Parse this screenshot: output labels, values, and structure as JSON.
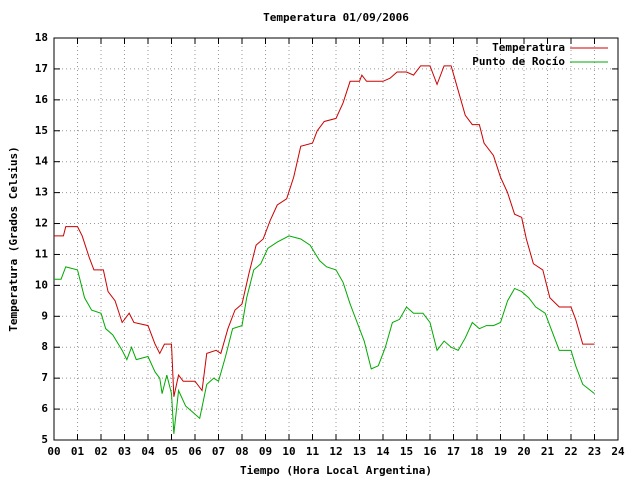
{
  "chart_data": {
    "type": "line",
    "title": "Temperatura 01/09/2006",
    "xlabel": "Tiempo (Hora Local Argentina)",
    "ylabel": "Temperatura (Grados Celsius)",
    "xlim": [
      0,
      24
    ],
    "ylim": [
      5,
      18
    ],
    "xticks": [
      {
        "value": 0,
        "label": "00"
      },
      {
        "value": 1,
        "label": "01"
      },
      {
        "value": 2,
        "label": "02"
      },
      {
        "value": 3,
        "label": "03"
      },
      {
        "value": 4,
        "label": "04"
      },
      {
        "value": 5,
        "label": "05"
      },
      {
        "value": 6,
        "label": "06"
      },
      {
        "value": 7,
        "label": "07"
      },
      {
        "value": 8,
        "label": "08"
      },
      {
        "value": 9,
        "label": "09"
      },
      10,
      11,
      12,
      13,
      14,
      15,
      16,
      17,
      18,
      19,
      20,
      21,
      22,
      23,
      24
    ],
    "yticks": [
      5,
      6,
      7,
      8,
      9,
      10,
      11,
      12,
      13,
      14,
      15,
      16,
      17,
      18
    ],
    "grid": true,
    "legend": "top-right",
    "series": [
      {
        "name": "Temperatura",
        "color": "#cc0000",
        "x": [
          0,
          0.4,
          0.5,
          1.0,
          1.2,
          1.5,
          1.7,
          2.1,
          2.3,
          2.6,
          2.9,
          3.2,
          3.4,
          4.0,
          4.3,
          4.5,
          4.7,
          5.0,
          5.1,
          5.3,
          5.5,
          6.0,
          6.3,
          6.5,
          6.9,
          7.1,
          7.4,
          7.7,
          8.0,
          8.3,
          8.6,
          8.9,
          9.2,
          9.5,
          9.9,
          10.2,
          10.5,
          11.0,
          11.2,
          11.5,
          12.0,
          12.3,
          12.6,
          13.0,
          13.1,
          13.3,
          14.0,
          14.3,
          14.6,
          15.0,
          15.3,
          15.6,
          16.0,
          16.3,
          16.6,
          16.9,
          17.2,
          17.5,
          17.8,
          18.1,
          18.3,
          18.7,
          19.0,
          19.3,
          19.6,
          19.9,
          20.1,
          20.4,
          20.8,
          21.1,
          21.5,
          22.0,
          22.2,
          22.5,
          23.0
        ],
        "values": [
          11.6,
          11.6,
          11.9,
          11.9,
          11.6,
          10.9,
          10.5,
          10.5,
          9.8,
          9.5,
          8.8,
          9.1,
          8.8,
          8.7,
          8.1,
          7.8,
          8.1,
          8.1,
          6.4,
          7.1,
          6.9,
          6.9,
          6.6,
          7.8,
          7.9,
          7.8,
          8.6,
          9.2,
          9.4,
          10.4,
          11.3,
          11.5,
          12.1,
          12.6,
          12.8,
          13.5,
          14.5,
          14.6,
          15.0,
          15.3,
          15.4,
          15.9,
          16.6,
          16.6,
          16.8,
          16.6,
          16.6,
          16.7,
          16.9,
          16.9,
          16.8,
          17.1,
          17.1,
          16.5,
          17.1,
          17.1,
          16.3,
          15.5,
          15.2,
          15.2,
          14.6,
          14.2,
          13.5,
          13.0,
          12.3,
          12.2,
          11.5,
          10.7,
          10.5,
          9.6,
          9.3,
          9.3,
          8.9,
          8.1,
          8.1
        ]
      },
      {
        "name": "Punto de Rocío",
        "color": "#00aa00",
        "x": [
          0,
          0.3,
          0.5,
          1.0,
          1.3,
          1.6,
          2.0,
          2.2,
          2.5,
          2.9,
          3.1,
          3.3,
          3.5,
          4.0,
          4.3,
          4.5,
          4.6,
          4.8,
          5.0,
          5.1,
          5.3,
          5.6,
          5.9,
          6.2,
          6.5,
          6.8,
          7.0,
          7.3,
          7.6,
          8.0,
          8.2,
          8.5,
          8.8,
          9.1,
          9.5,
          10.0,
          10.5,
          10.9,
          11.3,
          11.6,
          12.0,
          12.3,
          12.6,
          12.9,
          13.2,
          13.5,
          13.8,
          14.1,
          14.4,
          14.7,
          15.0,
          15.3,
          15.7,
          16.0,
          16.3,
          16.6,
          16.9,
          17.2,
          17.5,
          17.8,
          18.1,
          18.4,
          18.7,
          19.0,
          19.3,
          19.6,
          19.9,
          20.2,
          20.5,
          20.9,
          21.2,
          21.5,
          22.0,
          22.2,
          22.5,
          23.0
        ],
        "values": [
          10.2,
          10.2,
          10.6,
          10.5,
          9.6,
          9.2,
          9.1,
          8.6,
          8.4,
          7.9,
          7.6,
          8.0,
          7.6,
          7.7,
          7.2,
          7.0,
          6.5,
          7.1,
          6.5,
          5.2,
          6.6,
          6.1,
          5.9,
          5.7,
          6.8,
          7.0,
          6.9,
          7.7,
          8.6,
          8.7,
          9.6,
          10.5,
          10.7,
          11.2,
          11.4,
          11.6,
          11.5,
          11.3,
          10.8,
          10.6,
          10.5,
          10.1,
          9.4,
          8.8,
          8.2,
          7.3,
          7.4,
          8.0,
          8.8,
          8.9,
          9.3,
          9.1,
          9.1,
          8.8,
          7.9,
          8.2,
          8.0,
          7.9,
          8.3,
          8.8,
          8.6,
          8.7,
          8.7,
          8.8,
          9.5,
          9.9,
          9.8,
          9.6,
          9.3,
          9.1,
          8.5,
          7.9,
          7.9,
          7.4,
          6.8,
          6.5
        ]
      }
    ]
  }
}
